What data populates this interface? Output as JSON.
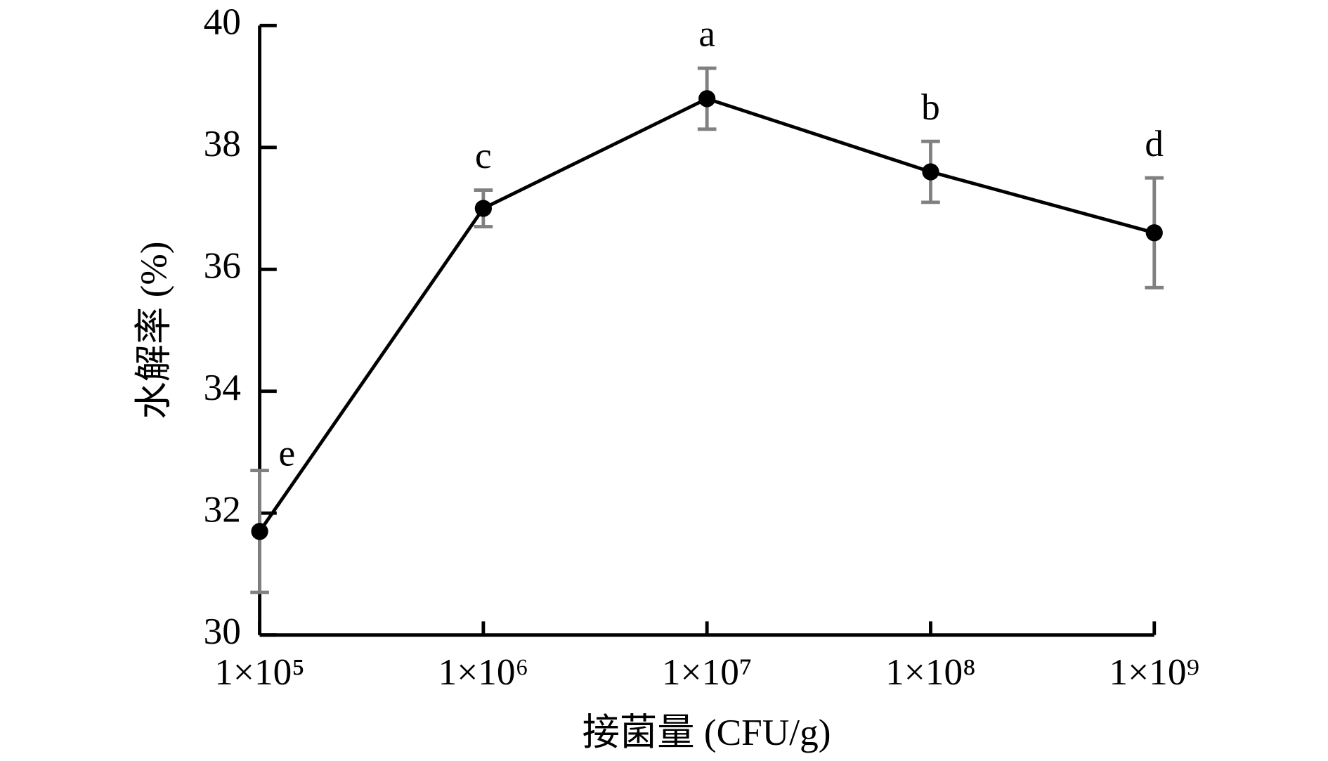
{
  "chart_data": {
    "type": "line",
    "categories": [
      "1×10⁵",
      "1×10⁶",
      "1×10⁷",
      "1×10⁸",
      "1×10⁹"
    ],
    "series": [
      {
        "color": "#000000",
        "error_color": "#808080",
        "values": [
          31.7,
          37.0,
          38.8,
          37.6,
          36.6
        ],
        "errors": [
          1.0,
          0.3,
          0.5,
          0.5,
          0.9
        ],
        "significance_labels": [
          "e",
          "c",
          "a",
          "b",
          "d"
        ]
      }
    ],
    "x_label": "接菌量 (CFU/g)",
    "y_label": "水解率 (%)",
    "ylim": [
      30,
      40
    ],
    "yticks": [
      30,
      32,
      34,
      36,
      38,
      40
    ],
    "grid": false
  }
}
